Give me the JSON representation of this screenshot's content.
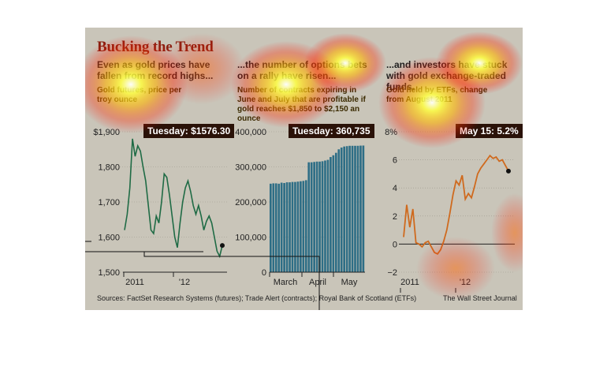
{
  "title": "Bucking the Trend",
  "panels": [
    {
      "heading": "Even as gold prices have fallen from record highs...",
      "subheading": "Gold futures, price per troy ounce",
      "callout": "Tuesday: $1576.30"
    },
    {
      "heading": "...the number of options bets on a rally have risen...",
      "subheading": "Number of contracts expiring in June and July that are profitable if gold reaches $1,850 to $2,150 an ounce",
      "callout": "Tuesday: 360,735"
    },
    {
      "heading": "...and investors have stuck with gold exchange-traded funds.",
      "subheading": "Gold held by ETFs, change from August 2011",
      "callout": "May 15: 5.2%"
    }
  ],
  "footer": {
    "sources": "Sources: FactSet Research Systems (futures); Trade Alert (contracts); Royal Bank of Scotland (ETFs)",
    "credit": "The Wall Street Journal"
  },
  "colors": {
    "gold_line": "#1f6b45",
    "bars": "#2e6e86",
    "etf_line": "#cf6a1e",
    "title": "#8a1f10"
  },
  "chart_data": [
    {
      "type": "line",
      "title": "Gold futures, price per troy ounce",
      "xlabel": "",
      "ylabel": "",
      "ylim": [
        1500,
        1900
      ],
      "y_ticks": [
        1500,
        1600,
        1700,
        1800,
        1900
      ],
      "y_tick_labels": [
        "1,500",
        "1,600",
        "1,700",
        "1,800",
        "$1,900"
      ],
      "x_tick_labels": [
        "2011",
        "'12"
      ],
      "series": [
        {
          "values": [
            1620,
            1665,
            1740,
            1880,
            1830,
            1860,
            1845,
            1800,
            1760,
            1690,
            1620,
            1610,
            1660,
            1640,
            1700,
            1780,
            1770,
            1720,
            1660,
            1600,
            1570,
            1640,
            1700,
            1740,
            1760,
            1730,
            1690,
            1665,
            1690,
            1660,
            1620,
            1645,
            1660,
            1640,
            1600,
            1560,
            1545,
            1576
          ]
        }
      ]
    },
    {
      "type": "bar",
      "title": "Number of contracts expiring in June and July that are profitable if gold reaches $1,850 to $2,150 an ounce",
      "ylim": [
        0,
        400000
      ],
      "y_ticks": [
        0,
        100000,
        200000,
        300000,
        400000
      ],
      "y_tick_labels": [
        "0",
        "100,000",
        "200,000",
        "300,000",
        "400,000"
      ],
      "x_tick_labels": [
        "March",
        "April",
        "May"
      ],
      "series": [
        {
          "values": [
            252000,
            253000,
            253000,
            252000,
            255000,
            254000,
            256000,
            256000,
            257000,
            257000,
            258000,
            259000,
            260000,
            262000,
            313000,
            313000,
            314000,
            315000,
            315000,
            316000,
            318000,
            320000,
            328000,
            333000,
            340000,
            350000,
            355000,
            358000,
            359000,
            360000,
            360000,
            360000,
            360000,
            360500,
            360735
          ]
        }
      ]
    },
    {
      "type": "line",
      "title": "Gold held by ETFs, change from August 2011",
      "ylim": [
        -2,
        8
      ],
      "y_ticks": [
        -2,
        0,
        2,
        4,
        6,
        8
      ],
      "y_tick_labels": [
        "−2",
        "0",
        "2",
        "4",
        "6",
        "8%"
      ],
      "x_tick_labels": [
        "2011",
        "'12"
      ],
      "series": [
        {
          "values": [
            0.5,
            2.8,
            1.2,
            2.5,
            0.1,
            0.0,
            -0.2,
            0.1,
            0.2,
            -0.2,
            -0.6,
            -0.7,
            -0.4,
            0.2,
            1.0,
            2.2,
            3.5,
            4.5,
            4.2,
            4.9,
            3.2,
            3.6,
            3.3,
            4.1,
            5.0,
            5.4,
            5.7,
            6.0,
            6.3,
            6.1,
            6.2,
            5.9,
            6.0,
            5.6,
            5.2
          ]
        }
      ]
    }
  ]
}
